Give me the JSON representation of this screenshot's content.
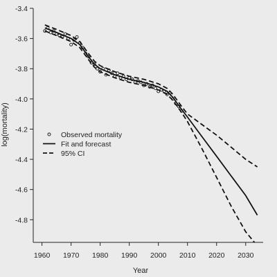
{
  "chart_data": {
    "type": "line",
    "title": "",
    "xlabel": "Year",
    "ylabel": "log(mortality)",
    "xlim": [
      1957,
      2036
    ],
    "ylim": [
      -4.95,
      -3.4
    ],
    "xticks": [
      1960,
      1970,
      1980,
      1990,
      2000,
      2010,
      2020,
      2030
    ],
    "yticks": [
      -3.4,
      -3.6,
      -3.8,
      -4.0,
      -4.2,
      -4.4,
      -4.6,
      -4.8
    ],
    "grid": false,
    "legend_position": "left",
    "series": [
      {
        "name": "Observed mortality",
        "style": "points",
        "x": [
          1961,
          1962,
          1963,
          1964,
          1965,
          1966,
          1967,
          1968,
          1969,
          1970,
          1971,
          1972,
          1973,
          1974,
          1975,
          1976,
          1977,
          1978,
          1979,
          1980,
          1981,
          1982,
          1983,
          1984,
          1985,
          1986,
          1987,
          1988,
          1989,
          1990,
          1991,
          1992,
          1993,
          1994,
          1995,
          1996,
          1997,
          1998,
          1999,
          2000,
          2001,
          2002,
          2003,
          2004,
          2005,
          2006,
          2007,
          2008
        ],
        "y": [
          -3.55,
          -3.53,
          -3.56,
          -3.55,
          -3.57,
          -3.58,
          -3.59,
          -3.57,
          -3.6,
          -3.64,
          -3.61,
          -3.59,
          -3.63,
          -3.66,
          -3.7,
          -3.72,
          -3.76,
          -3.77,
          -3.8,
          -3.82,
          -3.8,
          -3.84,
          -3.81,
          -3.83,
          -3.85,
          -3.83,
          -3.86,
          -3.85,
          -3.87,
          -3.86,
          -3.87,
          -3.89,
          -3.88,
          -3.89,
          -3.91,
          -3.9,
          -3.92,
          -3.91,
          -3.93,
          -3.95,
          -3.94,
          -3.95,
          -3.97,
          -3.96,
          -4.0,
          -4.03,
          -4.05,
          -4.08
        ]
      },
      {
        "name": "Fit and forecast",
        "style": "solid",
        "x": [
          1961,
          1965,
          1970,
          1973,
          1976,
          1978,
          1980,
          1985,
          1990,
          1995,
          2000,
          2003,
          2005,
          2008,
          2010,
          2015,
          2020,
          2025,
          2030,
          2034
        ],
        "y": [
          -3.53,
          -3.56,
          -3.6,
          -3.64,
          -3.72,
          -3.77,
          -3.8,
          -3.84,
          -3.87,
          -3.89,
          -3.92,
          -3.95,
          -3.99,
          -4.07,
          -4.12,
          -4.25,
          -4.38,
          -4.51,
          -4.64,
          -4.77
        ]
      },
      {
        "name": "95% CI",
        "style": "dashed",
        "x": [
          1961,
          1965,
          1970,
          1973,
          1976,
          1978,
          1980,
          1985,
          1990,
          1995,
          2000,
          2003,
          2005,
          2008,
          2010,
          2015,
          2020,
          2025,
          2030,
          2034
        ],
        "y": [
          -3.51,
          -3.54,
          -3.58,
          -3.62,
          -3.7,
          -3.75,
          -3.78,
          -3.82,
          -3.85,
          -3.87,
          -3.9,
          -3.93,
          -3.97,
          -4.05,
          -4.1,
          -4.17,
          -4.24,
          -4.32,
          -4.4,
          -4.45
        ]
      },
      {
        "name": "95% CI",
        "style": "dashed",
        "legend": false,
        "x": [
          1961,
          1965,
          1970,
          1973,
          1976,
          1978,
          1980,
          1985,
          1990,
          1995,
          2000,
          2003,
          2005,
          2008,
          2010,
          2015,
          2020,
          2025,
          2030,
          2033
        ],
        "y": [
          -3.55,
          -3.58,
          -3.62,
          -3.66,
          -3.74,
          -3.79,
          -3.82,
          -3.86,
          -3.89,
          -3.91,
          -3.94,
          -3.97,
          -4.01,
          -4.09,
          -4.15,
          -4.33,
          -4.52,
          -4.71,
          -4.88,
          -4.95
        ]
      }
    ]
  }
}
